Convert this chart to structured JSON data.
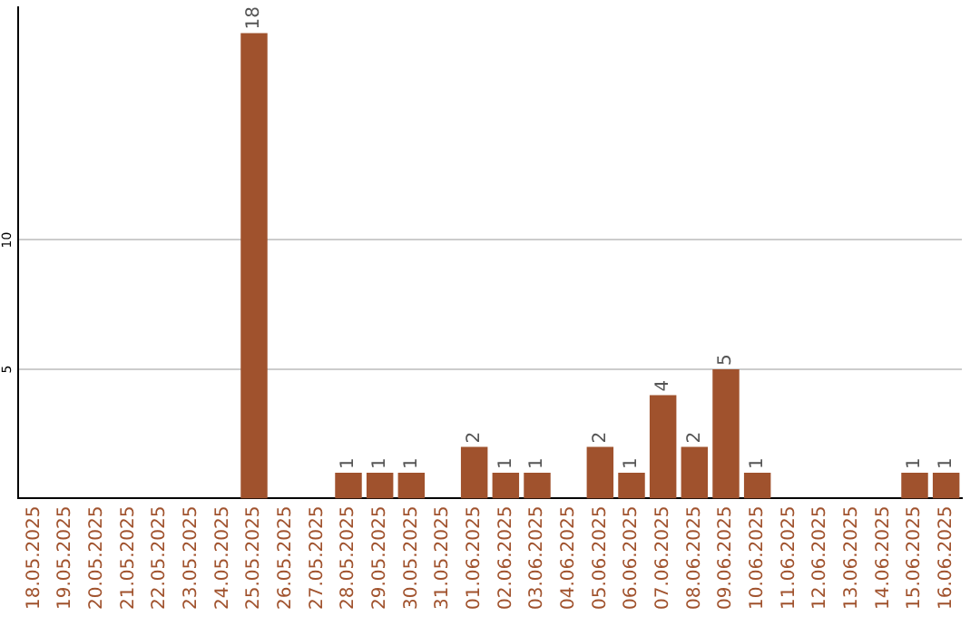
{
  "chart_data": {
    "type": "bar",
    "categories": [
      "18.05.2025",
      "19.05.2025",
      "20.05.2025",
      "21.05.2025",
      "22.05.2025",
      "23.05.2025",
      "24.05.2025",
      "25.05.2025",
      "26.05.2025",
      "27.05.2025",
      "28.05.2025",
      "29.05.2025",
      "30.05.2025",
      "31.05.2025",
      "01.06.2025",
      "02.06.2025",
      "03.06.2025",
      "04.06.2025",
      "05.06.2025",
      "06.06.2025",
      "07.06.2025",
      "08.06.2025",
      "09.06.2025",
      "10.06.2025",
      "11.06.2025",
      "12.06.2025",
      "13.06.2025",
      "14.06.2025",
      "15.06.2025",
      "16.06.2025"
    ],
    "values": [
      0,
      0,
      0,
      0,
      0,
      0,
      0,
      18,
      0,
      0,
      1,
      1,
      1,
      0,
      2,
      1,
      1,
      0,
      2,
      1,
      4,
      2,
      5,
      1,
      0,
      0,
      0,
      0,
      1,
      1
    ],
    "value_labels": [
      null,
      null,
      null,
      null,
      null,
      null,
      null,
      "18",
      null,
      null,
      "1",
      "1",
      "1",
      null,
      "2",
      "1",
      "1",
      null,
      "2",
      "1",
      "4",
      "2",
      "5",
      "1",
      null,
      null,
      null,
      null,
      "1",
      "1"
    ],
    "color": "#a0522d",
    "ylim": [
      0,
      19
    ],
    "yticks": [
      5,
      10
    ],
    "grid": "y",
    "legend": false
  }
}
